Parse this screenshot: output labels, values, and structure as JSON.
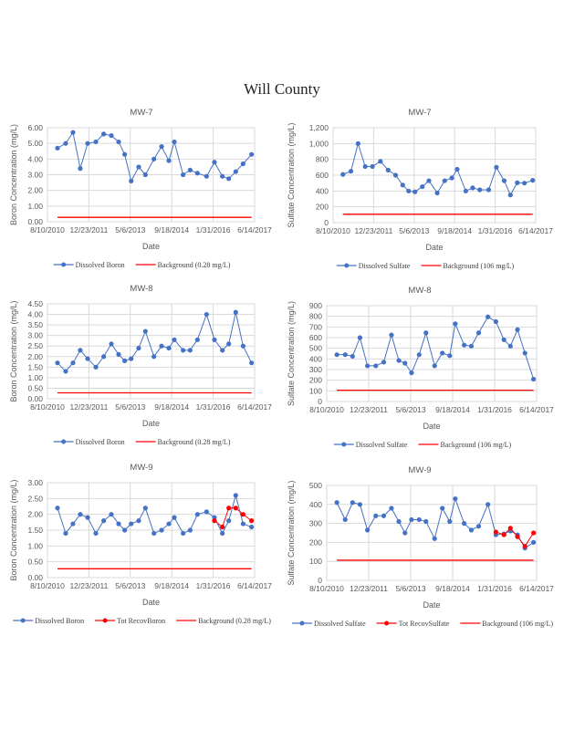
{
  "page": {
    "title": "Will County"
  },
  "colors": {
    "dissolved": "#4472c4",
    "tot_recov": "#ff0000",
    "background": "#ff0000",
    "grid": "#d9d9d9"
  },
  "chart_data": [
    {
      "type": "line",
      "title": "MW-7",
      "xlabel": "Date",
      "ylabel": "Boron Concentration (mg/L)",
      "xlim": [
        "2010-08-10",
        "2017-06-14"
      ],
      "xtick_labels": [
        "8/10/2010",
        "12/23/2011",
        "5/6/2013",
        "9/18/2014",
        "1/31/2016",
        "6/14/2017"
      ],
      "ylim": [
        0,
        6
      ],
      "ytick_labels": [
        "0.00",
        "1.00",
        "2.00",
        "3.00",
        "4.00",
        "5.00",
        "6.00"
      ],
      "grid": true,
      "legend": "bottom",
      "x": [
        "2010-12-09",
        "2011-03-18",
        "2011-06-14",
        "2011-09-10",
        "2011-12-08",
        "2012-03-16",
        "2012-06-19",
        "2012-09-19",
        "2012-12-16",
        "2013-02-27",
        "2013-05-16",
        "2013-08-15",
        "2013-11-04",
        "2014-02-15",
        "2014-05-18",
        "2014-08-14",
        "2014-10-19",
        "2015-02-02",
        "2015-04-28",
        "2015-07-25",
        "2015-11-12",
        "2016-02-15",
        "2016-05-21",
        "2016-08-06",
        "2016-10-29",
        "2017-01-26",
        "2017-05-08"
      ],
      "series": [
        {
          "name": "Dissolved Boron",
          "kind": "dissolved",
          "values": [
            4.7,
            5.0,
            5.7,
            3.4,
            5.0,
            5.1,
            5.6,
            5.5,
            5.1,
            4.3,
            2.6,
            3.5,
            3.0,
            4.0,
            4.8,
            3.9,
            5.1,
            3.0,
            3.3,
            3.1,
            2.9,
            3.8,
            2.9,
            2.75,
            3.2,
            3.7,
            4.3
          ]
        },
        {
          "name": "Background  (0.28 mg/L)",
          "kind": "background",
          "constant": 0.28
        }
      ]
    },
    {
      "type": "line",
      "title": "MW-7",
      "xlabel": "Date",
      "ylabel": "Sulfate Concentration (mg/L)",
      "xlim": [
        "2010-08-10",
        "2017-06-14"
      ],
      "xtick_labels": [
        "8/10/2010",
        "12/23/2011",
        "5/6/2013",
        "9/18/2014",
        "1/31/2016",
        "6/14/2017"
      ],
      "ylim": [
        0,
        1200
      ],
      "ytick_labels": [
        "0",
        "200",
        "400",
        "600",
        "800",
        "1,000",
        "1,200"
      ],
      "grid": true,
      "legend": "bottom",
      "x": [
        "2010-12-09",
        "2011-03-18",
        "2011-06-14",
        "2011-09-10",
        "2011-12-08",
        "2012-03-16",
        "2012-06-19",
        "2012-09-19",
        "2012-12-16",
        "2013-02-27",
        "2013-05-16",
        "2013-08-15",
        "2013-11-04",
        "2014-02-15",
        "2014-05-18",
        "2014-08-14",
        "2014-10-19",
        "2015-02-02",
        "2015-04-28",
        "2015-07-25",
        "2015-11-12",
        "2016-02-15",
        "2016-05-21",
        "2016-08-06",
        "2016-10-29",
        "2017-01-26",
        "2017-05-08"
      ],
      "series": [
        {
          "name": "Dissolved Sulfate",
          "kind": "dissolved",
          "values": [
            610,
            650,
            1000,
            710,
            710,
            775,
            665,
            600,
            475,
            400,
            390,
            455,
            530,
            375,
            530,
            565,
            675,
            400,
            440,
            415,
            415,
            700,
            530,
            350,
            505,
            500,
            535
          ]
        },
        {
          "name": "Background  (106 mg/L)",
          "kind": "background",
          "constant": 106
        }
      ]
    },
    {
      "type": "line",
      "title": "MW-8",
      "xlabel": "Date",
      "ylabel": "Boron Concentration (mg/L)",
      "xlim": [
        "2010-08-10",
        "2017-06-14"
      ],
      "xtick_labels": [
        "8/10/2010",
        "12/23/2011",
        "5/6/2013",
        "9/18/2014",
        "1/31/2016",
        "6/14/2017"
      ],
      "ylim": [
        0,
        4.5
      ],
      "ytick_labels": [
        "0.00",
        "0.50",
        "1.00",
        "1.50",
        "2.00",
        "2.50",
        "3.00",
        "3.50",
        "4.00",
        "4.50"
      ],
      "grid": true,
      "legend": "bottom",
      "x": [
        "2010-12-09",
        "2011-03-18",
        "2011-06-14",
        "2011-09-10",
        "2011-12-08",
        "2012-03-16",
        "2012-06-19",
        "2012-09-19",
        "2012-12-16",
        "2013-02-27",
        "2013-05-16",
        "2013-08-15",
        "2013-11-04",
        "2014-02-15",
        "2014-05-18",
        "2014-08-14",
        "2014-10-19",
        "2015-02-02",
        "2015-04-28",
        "2015-07-25",
        "2015-11-12",
        "2016-02-15",
        "2016-05-21",
        "2016-08-06",
        "2016-10-29",
        "2017-01-26",
        "2017-05-08"
      ],
      "series": [
        {
          "name": "Dissolved Boron",
          "kind": "dissolved",
          "values": [
            1.7,
            1.3,
            1.7,
            2.3,
            1.9,
            1.5,
            2.0,
            2.6,
            2.1,
            1.8,
            1.9,
            2.4,
            3.2,
            2.0,
            2.5,
            2.4,
            2.8,
            2.3,
            2.3,
            2.8,
            4.0,
            2.8,
            2.3,
            2.6,
            4.1,
            2.5,
            1.7
          ]
        },
        {
          "name": "Background  (0.28 mg/L)",
          "kind": "background",
          "constant": 0.28
        }
      ]
    },
    {
      "type": "line",
      "title": "MW-8",
      "xlabel": "Date",
      "ylabel": "Sulfate Concentration (mg/L)",
      "xlim": [
        "2010-08-10",
        "2017-06-14"
      ],
      "xtick_labels": [
        "8/10/2010",
        "12/23/2011",
        "5/6/2013",
        "9/18/2014",
        "1/31/2016",
        "6/14/2017"
      ],
      "ylim": [
        0,
        900
      ],
      "ytick_labels": [
        "0",
        "100",
        "200",
        "300",
        "400",
        "500",
        "600",
        "700",
        "800",
        "900"
      ],
      "grid": true,
      "legend": "bottom",
      "x": [
        "2010-12-09",
        "2011-03-18",
        "2011-06-14",
        "2011-09-10",
        "2011-12-08",
        "2012-03-16",
        "2012-06-19",
        "2012-09-19",
        "2012-12-16",
        "2013-02-27",
        "2013-05-16",
        "2013-08-15",
        "2013-11-04",
        "2014-02-15",
        "2014-05-18",
        "2014-08-14",
        "2014-10-19",
        "2015-02-02",
        "2015-04-28",
        "2015-07-25",
        "2015-11-12",
        "2016-02-15",
        "2016-05-21",
        "2016-08-06",
        "2016-10-29",
        "2017-01-26",
        "2017-05-08"
      ],
      "series": [
        {
          "name": "Dissolved Sulfate",
          "kind": "dissolved",
          "values": [
            440,
            440,
            425,
            600,
            335,
            335,
            370,
            625,
            385,
            360,
            270,
            440,
            645,
            335,
            455,
            430,
            730,
            530,
            520,
            645,
            795,
            750,
            580,
            520,
            675,
            455,
            210
          ]
        },
        {
          "name": "Background  (106 mg/L)",
          "kind": "background",
          "constant": 106
        }
      ]
    },
    {
      "type": "line",
      "title": "MW-9",
      "xlabel": "Date",
      "ylabel": "Boron Concentration (mg/L)",
      "xlim": [
        "2010-08-10",
        "2017-06-14"
      ],
      "xtick_labels": [
        "8/10/2010",
        "12/23/2011",
        "5/6/2013",
        "9/18/2014",
        "1/31/2016",
        "6/14/2017"
      ],
      "ylim": [
        0,
        3
      ],
      "ytick_labels": [
        "0.00",
        "0.50",
        "1.00",
        "1.50",
        "2.00",
        "2.50",
        "3.00"
      ],
      "grid": true,
      "legend": "bottom",
      "x": [
        "2010-12-09",
        "2011-03-18",
        "2011-06-14",
        "2011-09-10",
        "2011-12-08",
        "2012-03-16",
        "2012-06-19",
        "2012-09-19",
        "2012-12-16",
        "2013-02-27",
        "2013-05-16",
        "2013-08-15",
        "2013-11-04",
        "2014-02-15",
        "2014-05-18",
        "2014-08-14",
        "2014-10-19",
        "2015-02-02",
        "2015-04-28",
        "2015-07-25",
        "2015-11-12",
        "2016-02-15",
        "2016-05-21",
        "2016-08-06",
        "2016-10-29",
        "2017-01-26",
        "2017-05-08"
      ],
      "series": [
        {
          "name": "Dissolved Boron",
          "kind": "dissolved",
          "values": [
            2.2,
            1.4,
            1.7,
            2.0,
            1.9,
            1.4,
            1.8,
            2.0,
            1.7,
            1.5,
            1.7,
            1.8,
            2.2,
            1.4,
            1.5,
            1.7,
            1.9,
            1.4,
            1.5,
            2.0,
            2.08,
            1.9,
            1.4,
            1.8,
            2.6,
            1.7,
            1.6
          ]
        },
        {
          "name": "Tot RecovBoron",
          "kind": "tot_recov",
          "x": [
            "2016-02-15",
            "2016-05-21",
            "2016-08-06",
            "2016-10-29",
            "2017-01-26",
            "2017-05-08"
          ],
          "values": [
            1.8,
            1.6,
            2.2,
            2.2,
            2.0,
            1.8
          ]
        },
        {
          "name": "Background  (0.28 mg/L)",
          "kind": "background",
          "constant": 0.28
        }
      ]
    },
    {
      "type": "line",
      "title": "MW-9",
      "xlabel": "Date",
      "ylabel": "Sulfate Concentration (mg/L)",
      "xlim": [
        "2010-08-10",
        "2017-06-14"
      ],
      "xtick_labels": [
        "8/10/2010",
        "12/23/2011",
        "5/6/2013",
        "9/18/2014",
        "1/31/2016",
        "6/14/2017"
      ],
      "ylim": [
        0,
        500
      ],
      "ytick_labels": [
        "0",
        "100",
        "200",
        "300",
        "400",
        "500"
      ],
      "grid": true,
      "legend": "bottom",
      "x": [
        "2010-12-09",
        "2011-03-18",
        "2011-06-14",
        "2011-09-10",
        "2011-12-08",
        "2012-03-16",
        "2012-06-19",
        "2012-09-19",
        "2012-12-16",
        "2013-02-27",
        "2013-05-16",
        "2013-08-15",
        "2013-11-04",
        "2014-02-15",
        "2014-05-18",
        "2014-08-14",
        "2014-10-19",
        "2015-02-02",
        "2015-04-28",
        "2015-07-25",
        "2015-11-12",
        "2016-02-15",
        "2016-05-21",
        "2016-08-06",
        "2016-10-29",
        "2017-01-26",
        "2017-05-08"
      ],
      "series": [
        {
          "name": "Dissolved Sulfate",
          "kind": "dissolved",
          "values": [
            410,
            320,
            410,
            400,
            265,
            340,
            340,
            380,
            310,
            250,
            320,
            320,
            310,
            220,
            380,
            310,
            430,
            300,
            265,
            285,
            400,
            240,
            245,
            260,
            240,
            170,
            200
          ]
        },
        {
          "name": "Tot RecovSulfate",
          "kind": "tot_recov",
          "x": [
            "2016-02-15",
            "2016-05-21",
            "2016-08-06",
            "2016-10-29",
            "2017-01-26",
            "2017-05-08"
          ],
          "values": [
            255,
            240,
            275,
            230,
            180,
            250
          ]
        },
        {
          "name": "Background  (106 mg/L)",
          "kind": "background",
          "constant": 106
        }
      ]
    }
  ]
}
